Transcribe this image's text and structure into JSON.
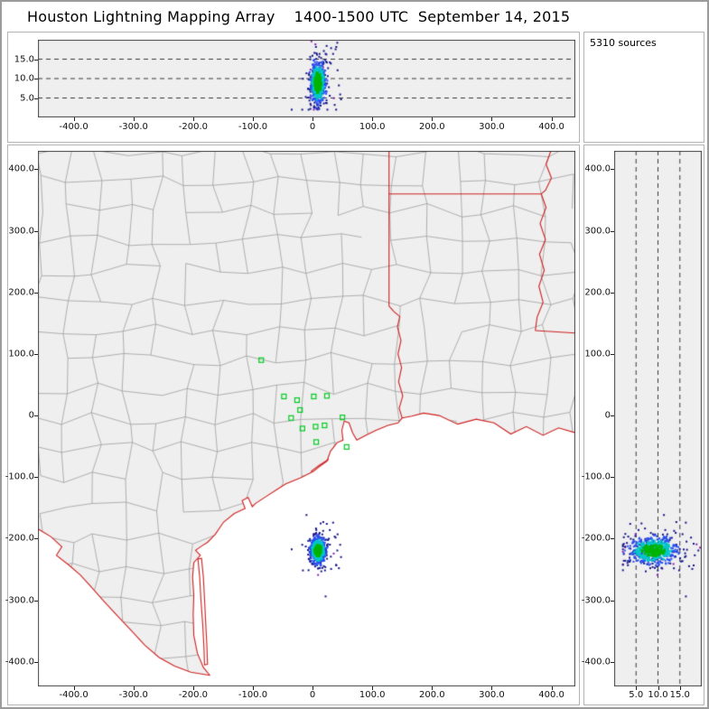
{
  "title": "Houston Lightning Mapping Array    1400-1500 UTC  September 14, 2015",
  "sources_label": "5310 sources",
  "colors": {
    "plot_bg": "#efefef",
    "county_line": "#9e9e9e",
    "state_border": "#cf1f1f",
    "station": "#00cc22",
    "frame": "#444444",
    "dash_line": "#222222",
    "water": "#ffffff"
  },
  "chart_data": {
    "type": "scatter",
    "title": "Houston Lightning Mapping Array",
    "time_range": "1400-1500 UTC September 14, 2015",
    "num_sources": 5310,
    "panels": {
      "alt_ew": {
        "x_ticks": [
          -400,
          -300,
          -200,
          -100,
          0,
          100,
          200,
          300,
          400
        ],
        "alt_ticks": [
          5,
          10,
          15
        ],
        "x_range": [
          -460,
          440
        ],
        "alt_range": [
          0,
          20
        ]
      },
      "plan": {
        "x_ticks": [
          -400,
          -300,
          -200,
          -100,
          0,
          100,
          200,
          300,
          400
        ],
        "y_ticks": [
          400,
          300,
          200,
          100,
          0,
          -100,
          -200,
          -300,
          -400
        ],
        "x_range": [
          -460,
          440
        ],
        "y_range": [
          -440,
          430
        ]
      },
      "alt_ns": {
        "alt_ticks": [
          5,
          10,
          15
        ],
        "y_ticks": [
          400,
          300,
          200,
          100,
          0,
          -100,
          -200,
          -300,
          -400
        ],
        "alt_range": [
          0,
          20
        ],
        "y_range": [
          -440,
          430
        ]
      }
    },
    "stations_km": [
      [
        -86,
        90
      ],
      [
        -48,
        31
      ],
      [
        -26,
        25
      ],
      [
        2,
        31
      ],
      [
        24,
        32
      ],
      [
        -21,
        9
      ],
      [
        -36,
        -4
      ],
      [
        -17,
        -21
      ],
      [
        5,
        -18
      ],
      [
        20,
        -16
      ],
      [
        6,
        -43
      ],
      [
        50,
        -3
      ],
      [
        57,
        -51
      ]
    ],
    "storm_cluster": {
      "center": {
        "ew": 9,
        "ns": -219,
        "alt": 9
      },
      "spread": {
        "ew": 6,
        "ns": 10,
        "alt": 2.6
      },
      "points": 780,
      "outliers": 70,
      "seed": 42,
      "palette": [
        "#00b400",
        "#00c8c8",
        "#2850f0",
        "#141488",
        "#8a20b0"
      ]
    },
    "geo": {
      "coast": [
        [
          440,
          -28
        ],
        [
          412,
          -20
        ],
        [
          386,
          -32
        ],
        [
          358,
          -18
        ],
        [
          332,
          -30
        ],
        [
          304,
          -12
        ],
        [
          274,
          -6
        ],
        [
          243,
          -14
        ],
        [
          212,
          0
        ],
        [
          186,
          4
        ],
        [
          166,
          -1
        ],
        [
          150,
          -4
        ],
        [
          143,
          -12
        ],
        [
          126,
          -16
        ],
        [
          106,
          -24
        ],
        [
          89,
          -32
        ],
        [
          74,
          -40
        ],
        [
          67,
          -28
        ],
        [
          61,
          -12
        ],
        [
          53,
          -9
        ],
        [
          49,
          -24
        ],
        [
          51,
          -40
        ],
        [
          41,
          -44
        ],
        [
          30,
          -58
        ],
        [
          24,
          -74
        ],
        [
          10,
          -84
        ],
        [
          1,
          -91
        ],
        [
          -20,
          -101
        ],
        [
          -45,
          -111
        ],
        [
          -58,
          -119
        ],
        [
          -77,
          -131
        ],
        [
          -96,
          -143
        ],
        [
          -101,
          -148
        ],
        [
          -108,
          -133
        ],
        [
          -118,
          -138
        ],
        [
          -113,
          -151
        ],
        [
          -131,
          -159
        ],
        [
          -149,
          -173
        ],
        [
          -163,
          -193
        ],
        [
          -176,
          -206
        ],
        [
          -186,
          -212
        ],
        [
          -196,
          -219
        ],
        [
          -188,
          -227
        ],
        [
          -199,
          -239
        ],
        [
          -201,
          -262
        ],
        [
          -199,
          -292
        ],
        [
          -200,
          -324
        ],
        [
          -199,
          -357
        ],
        [
          -193,
          -386
        ],
        [
          -183,
          -409
        ],
        [
          -172,
          -422
        ]
      ],
      "rio_grande": [
        [
          -460,
          -184
        ],
        [
          -438,
          -197
        ],
        [
          -420,
          -213
        ],
        [
          -429,
          -227
        ],
        [
          -408,
          -243
        ],
        [
          -389,
          -259
        ],
        [
          -371,
          -278
        ],
        [
          -351,
          -300
        ],
        [
          -329,
          -323
        ],
        [
          -304,
          -349
        ],
        [
          -281,
          -373
        ],
        [
          -257,
          -393
        ],
        [
          -231,
          -407
        ],
        [
          -204,
          -417
        ],
        [
          -172,
          -422
        ]
      ],
      "sabine_tx_la": [
        [
          150,
          -4
        ],
        [
          145,
          12
        ],
        [
          151,
          32
        ],
        [
          144,
          55
        ],
        [
          149,
          78
        ],
        [
          143,
          100
        ],
        [
          148,
          122
        ],
        [
          142,
          144
        ],
        [
          146,
          161
        ],
        [
          136,
          169
        ],
        [
          128,
          178
        ],
        [
          128,
          430
        ]
      ],
      "la_ar_border": [
        [
          128,
          360
        ],
        [
          383,
          360
        ]
      ],
      "mississippi": [
        [
          399,
          430
        ],
        [
          391,
          408
        ],
        [
          400,
          386
        ],
        [
          390,
          366
        ],
        [
          383,
          360
        ],
        [
          391,
          338
        ],
        [
          381,
          312
        ],
        [
          390,
          286
        ],
        [
          380,
          262
        ],
        [
          388,
          236
        ],
        [
          379,
          210
        ],
        [
          386,
          184
        ],
        [
          376,
          160
        ],
        [
          373,
          138
        ]
      ],
      "la_ms_border": [
        [
          373,
          138
        ],
        [
          440,
          134
        ]
      ],
      "galveston_island": [
        [
          27,
          -71
        ],
        [
          11,
          -81
        ],
        [
          -3,
          -91
        ]
      ],
      "padre_island": [
        [
          -186,
          -232
        ],
        [
          -183,
          -262
        ],
        [
          -181,
          -298
        ],
        [
          -179,
          -338
        ],
        [
          -177,
          -375
        ],
        [
          -176,
          -404
        ],
        [
          -181,
          -405
        ],
        [
          -182,
          -376
        ],
        [
          -184,
          -340
        ],
        [
          -187,
          -300
        ],
        [
          -189,
          -264
        ],
        [
          -192,
          -233
        ]
      ]
    }
  }
}
